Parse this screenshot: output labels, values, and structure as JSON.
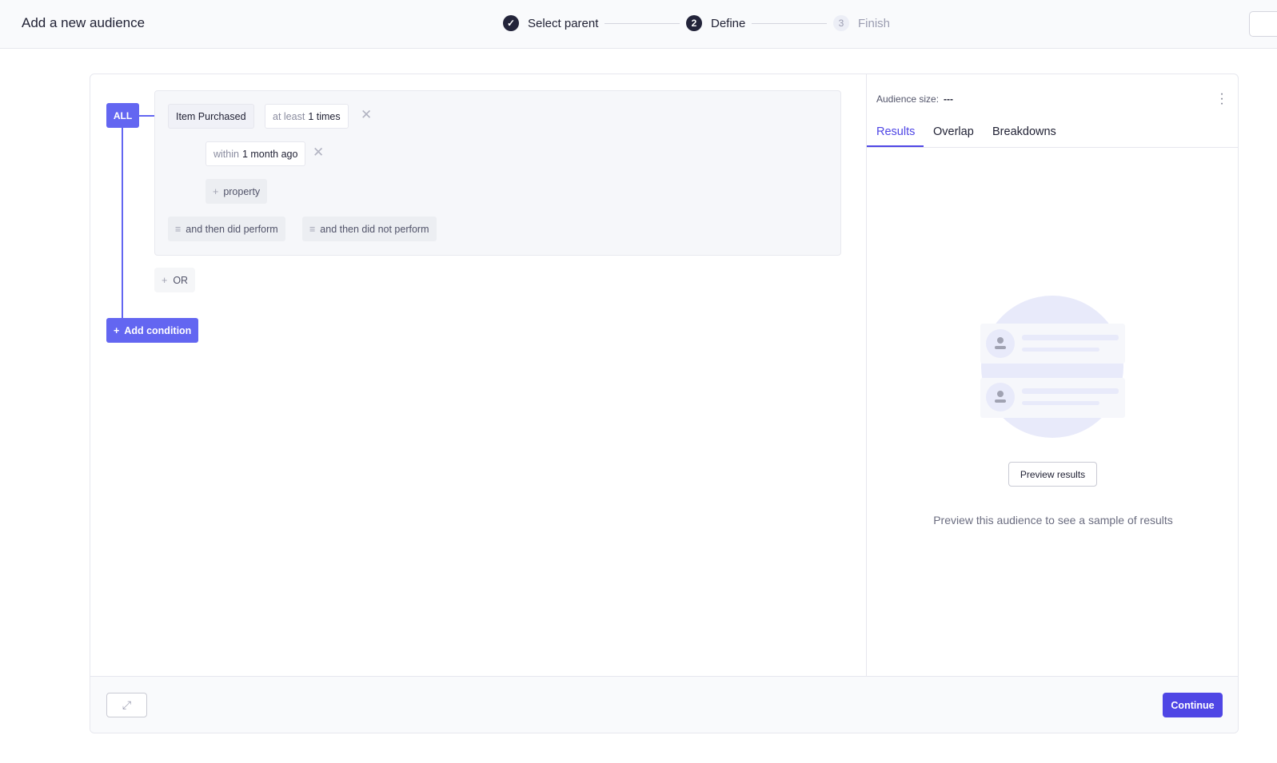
{
  "header": {
    "title": "Add a new audience",
    "steps": [
      {
        "label": "Select parent",
        "state": "complete",
        "icon": "check-icon"
      },
      {
        "label": "Define",
        "number": "2",
        "state": "current"
      },
      {
        "label": "Finish",
        "number": "3",
        "state": "upcoming"
      }
    ]
  },
  "builder": {
    "group_operator": "ALL",
    "event": "Item Purchased",
    "frequency": {
      "prefix": "at least",
      "value": "1 times"
    },
    "timeframe": {
      "prefix": "within",
      "value": "1 month ago"
    },
    "add_property": "property",
    "then_perform": "and then did perform",
    "then_not_perform": "and then did not perform",
    "or_label": "OR",
    "add_condition": "Add condition"
  },
  "results": {
    "audience_size_label": "Audience size:",
    "audience_size_value": "---",
    "tabs": [
      "Results",
      "Overlap",
      "Breakdowns"
    ],
    "active_tab": "Results",
    "preview_button": "Preview results",
    "empty_text": "Preview this audience to see a sample of results"
  },
  "footer": {
    "continue": "Continue",
    "expand_icon": "expand-icon"
  },
  "colors": {
    "accent": "#6366f1",
    "primary": "#4f46e5"
  }
}
